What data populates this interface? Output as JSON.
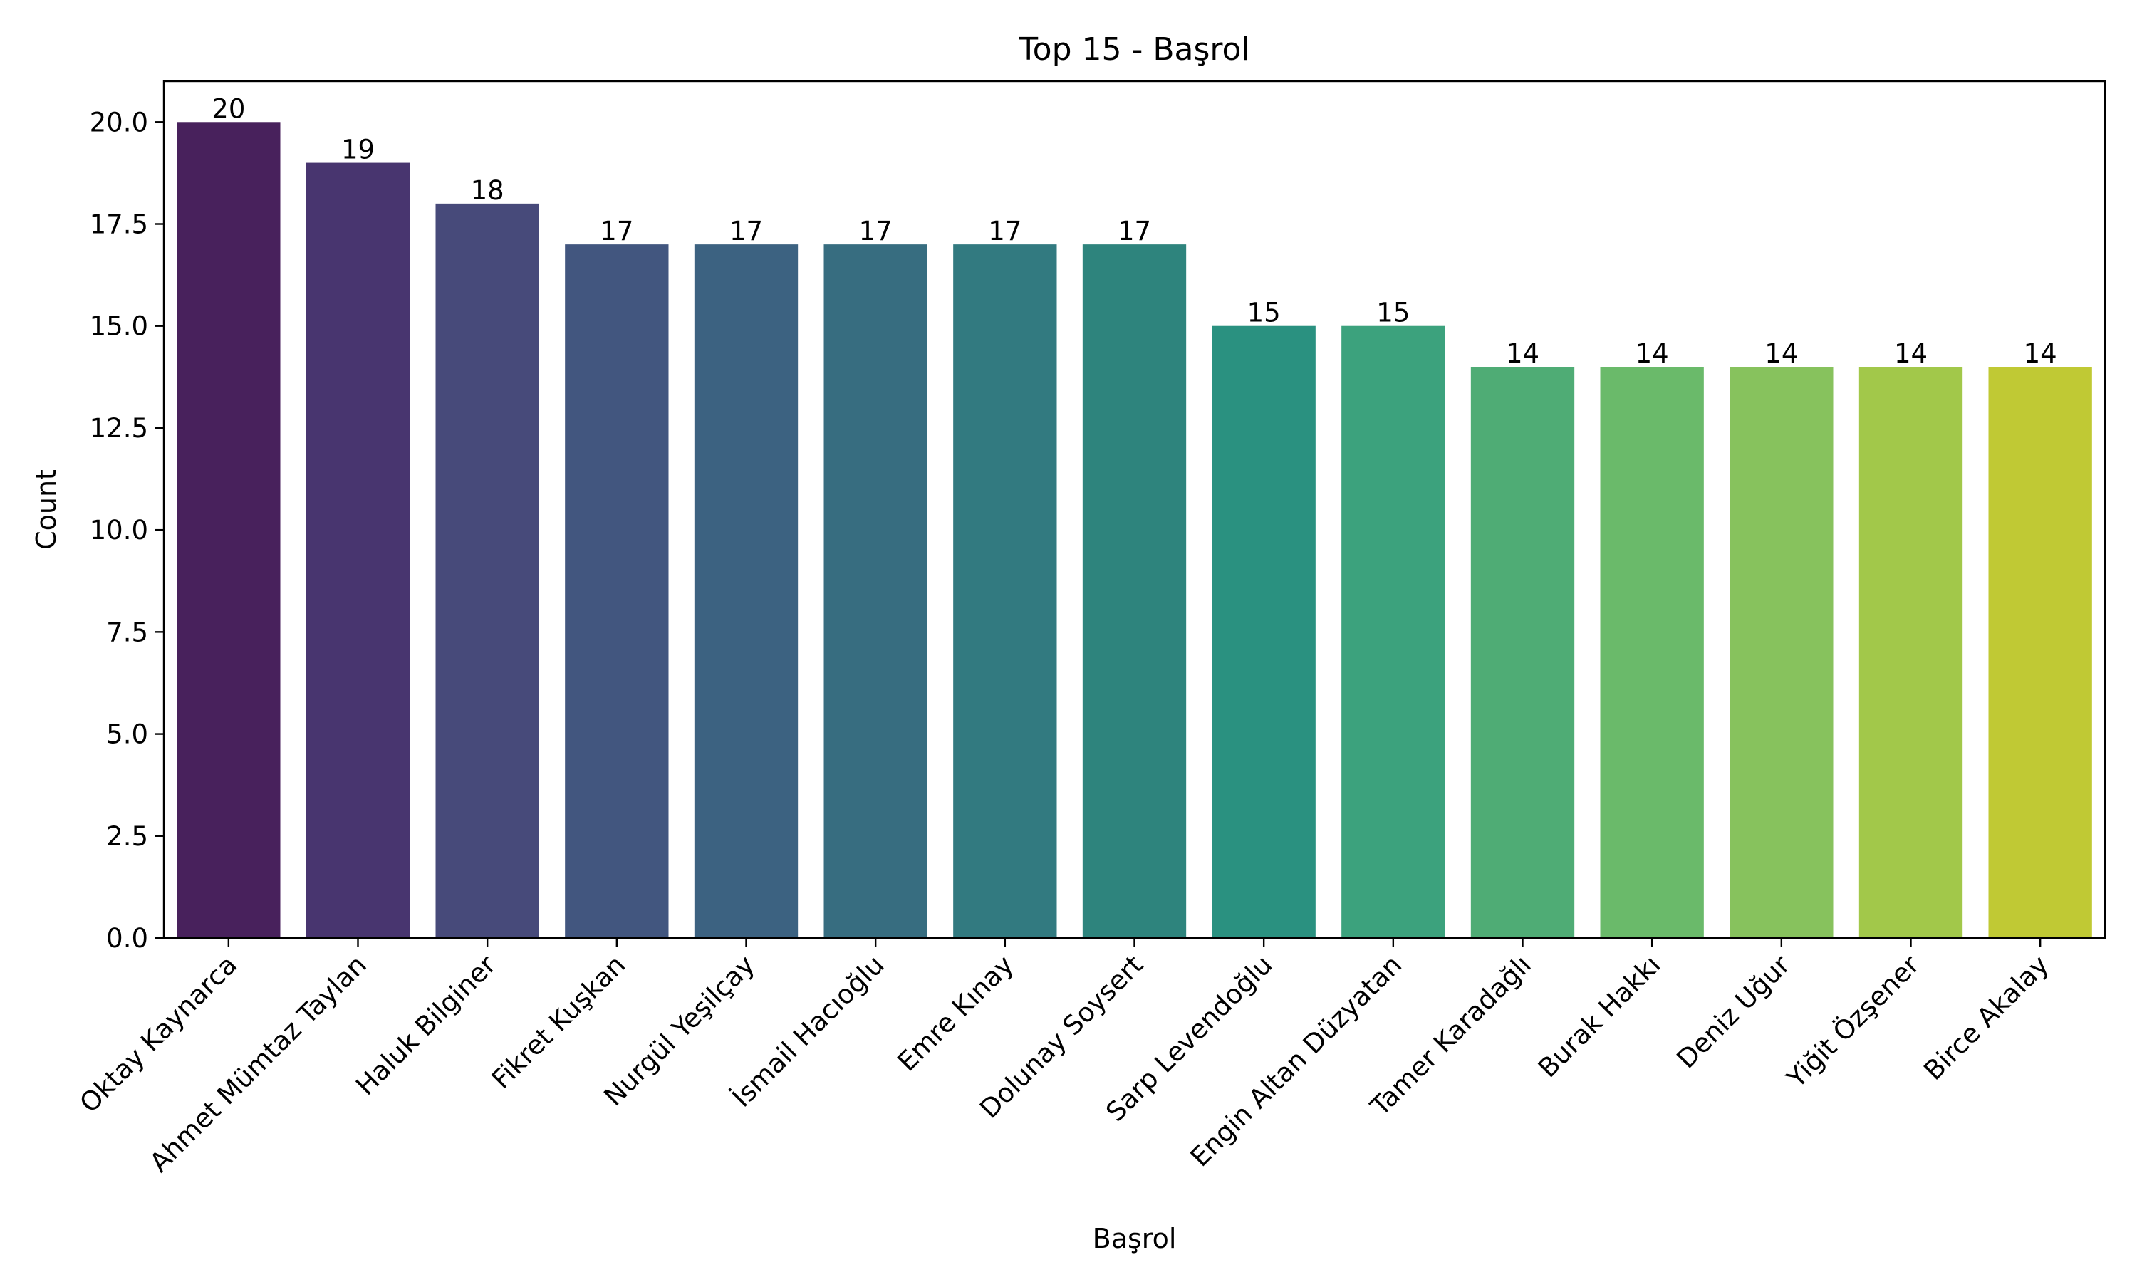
{
  "chart_data": {
    "type": "bar",
    "title": "Top 15 - Başrol",
    "xlabel": "Başrol",
    "ylabel": "Count",
    "ylim": [
      0,
      21
    ],
    "yticks": [
      "0.0",
      "2.5",
      "5.0",
      "7.5",
      "10.0",
      "12.5",
      "15.0",
      "17.5",
      "20.0"
    ],
    "grid": false,
    "legend": "none",
    "palette": "viridis",
    "categories": [
      "Oktay Kaynarca",
      "Ahmet Mümtaz Taylan",
      "Haluk Bilginer",
      "Fikret Kuşkan",
      "Nurgül Yeşilçay",
      "İsmail Hacıoğlu",
      "Emre Kınay",
      "Dolunay Soysert",
      "Sarp Levendoğlu",
      "Engin Altan Düzyatan",
      "Tamer Karadağlı",
      "Burak Hakkı",
      "Deniz Uğur",
      "Yiğit Özşener",
      "Birce Akalay"
    ],
    "values": [
      20,
      19,
      18,
      17,
      17,
      17,
      17,
      17,
      15,
      15,
      14,
      14,
      14,
      14,
      14
    ],
    "colors": [
      "#48215c",
      "#48356f",
      "#474a7a",
      "#42567f",
      "#3c6281",
      "#376d80",
      "#327a80",
      "#2e847d",
      "#2a9180",
      "#3ca27d",
      "#4fac75",
      "#6aba6a",
      "#87c25d",
      "#a2c84a",
      "#c0c934"
    ]
  }
}
